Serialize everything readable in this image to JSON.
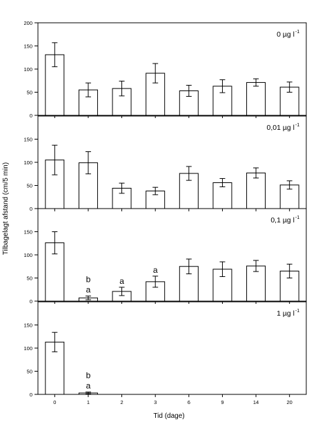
{
  "chart_data": {
    "type": "bar",
    "xlabel": "Tid (dage)",
    "ylabel": "Tilbagelagt afstand (cm/5 min)",
    "categories": [
      "0",
      "1",
      "2",
      "3",
      "6",
      "9",
      "14",
      "20"
    ],
    "ylim": [
      0,
      200
    ],
    "yticks": [
      0,
      50,
      100,
      150,
      200
    ],
    "panels": [
      {
        "label": "0 µg l",
        "label_superscript": "-1",
        "values": [
          131,
          55,
          58,
          91,
          53,
          63,
          71,
          61
        ],
        "errors": [
          26,
          15,
          16,
          21,
          12,
          14,
          8,
          11
        ],
        "annotations": []
      },
      {
        "label": "0,01 µg l",
        "label_superscript": "-1",
        "values": [
          105,
          99,
          44,
          38,
          76,
          56,
          77,
          51
        ],
        "errors": [
          32,
          24,
          11,
          8,
          15,
          9,
          11,
          9
        ],
        "annotations": []
      },
      {
        "label": "0,1 µg l",
        "label_superscript": "-1",
        "values": [
          126,
          7,
          21,
          42,
          75,
          69,
          76,
          65
        ],
        "errors": [
          24,
          4,
          9,
          12,
          16,
          16,
          12,
          15
        ],
        "annotations": [
          {
            "category": "1",
            "lines": [
              "b",
              "a"
            ]
          },
          {
            "category": "2",
            "lines": [
              "a"
            ]
          },
          {
            "category": "3",
            "lines": [
              "a"
            ]
          }
        ]
      },
      {
        "label": "1 µg l",
        "label_superscript": "-1",
        "values": [
          113,
          3,
          null,
          null,
          null,
          null,
          null,
          null
        ],
        "errors": [
          21,
          2,
          null,
          null,
          null,
          null,
          null,
          null
        ],
        "annotations": [
          {
            "category": "1",
            "lines": [
              "b",
              "a"
            ]
          }
        ]
      }
    ]
  }
}
